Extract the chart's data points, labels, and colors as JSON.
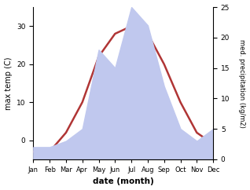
{
  "months": [
    "Jan",
    "Feb",
    "Mar",
    "Apr",
    "May",
    "Jun",
    "Jul",
    "Aug",
    "Sep",
    "Oct",
    "Nov",
    "Dec"
  ],
  "temp": [
    -3,
    -3,
    2,
    10,
    22,
    28,
    30,
    28,
    20,
    10,
    2,
    -1
  ],
  "precip": [
    2,
    2,
    3,
    5,
    18,
    15,
    25,
    22,
    12,
    5,
    3,
    5
  ],
  "temp_ylim": [
    -5,
    35
  ],
  "precip_ylim": [
    0,
    25
  ],
  "temp_yticks": [
    0,
    10,
    20,
    30
  ],
  "precip_yticks": [
    0,
    5,
    10,
    15,
    20,
    25
  ],
  "temp_color": "#b03535",
  "precip_fill_color": "#c0c8ee",
  "xlabel": "date (month)",
  "ylabel_left": "max temp (C)",
  "ylabel_right": "med. precipitation (kg/m2)",
  "bg_color": "#ffffff",
  "line_width": 1.8
}
